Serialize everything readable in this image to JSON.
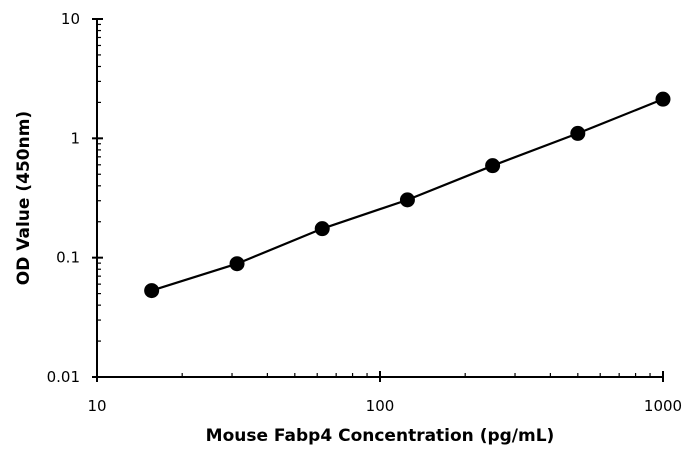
{
  "chart_data": {
    "type": "scatter",
    "title": "",
    "xlabel": "Mouse Fabp4 Concentration (pg/mL)",
    "ylabel": "OD Value (450nm)",
    "x_scale": "log",
    "y_scale": "log",
    "xlim": [
      10,
      1000
    ],
    "ylim": [
      0.01,
      10
    ],
    "x_ticks": [
      10,
      100,
      1000
    ],
    "x_tick_labels": [
      "10",
      "100",
      "1000"
    ],
    "y_ticks": [
      0.01,
      0.1,
      1,
      10
    ],
    "y_tick_labels": [
      "0.01",
      "0.1",
      "1",
      "10"
    ],
    "grid": false,
    "legend": "none",
    "series": [
      {
        "x": [
          15.6,
          31.25,
          62.5,
          125,
          250,
          500,
          1000
        ],
        "y": [
          0.053,
          0.089,
          0.175,
          0.305,
          0.59,
          1.1,
          2.13
        ],
        "style": "line+markers",
        "color": "#000000"
      }
    ]
  }
}
